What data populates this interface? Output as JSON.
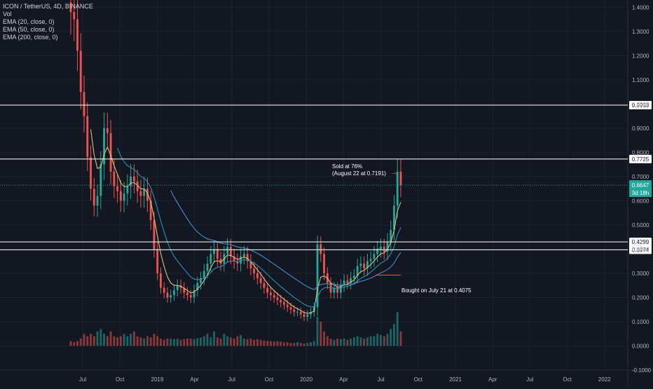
{
  "header": {
    "symbol_line": "ICON / TetherUS, 4D, BINANCE",
    "indicators": [
      "Vol",
      "EMA (20, close, 0)",
      "EMA (50, close, 0)",
      "EMA (200, close, 0)"
    ]
  },
  "colors": {
    "background": "#131722",
    "grid": "#1e222d",
    "axis_text": "#b2b5be",
    "up": "#26a69a",
    "down": "#ef5350",
    "ema20": "#d9c27a",
    "ema50": "#2196b3",
    "ema200": "#3e8fcf",
    "hlines": "#ffffff",
    "current_price_line": "#26a69a",
    "arrow_sold": "#ef5350",
    "arrow_bought": "#26a69a"
  },
  "chart_data": {
    "type": "candlestick",
    "x_ticks": [
      "Jul",
      "Oct",
      "2019",
      "Apr",
      "Jul",
      "Oct",
      "2020",
      "Apr",
      "Jul",
      "Oct",
      "2021",
      "Apr",
      "Jul",
      "Oct",
      "2022"
    ],
    "y_ticks": [
      "1.4000",
      "1.3000",
      "1.2000",
      "1.1000",
      "1.0000",
      "0.9000",
      "0.8000",
      "0.7000",
      "0.6000",
      "0.5000",
      "0.4000",
      "0.3000",
      "0.2000",
      "0.1000",
      "0.0000",
      "-0.1000"
    ],
    "ylim": [
      -0.1,
      1.43
    ],
    "horizontal_levels": [
      0.9953,
      0.7725,
      0.4299,
      0.3974
    ],
    "level_labels": [
      "0.9953",
      "0.7725",
      "0.4299",
      "0.3974"
    ],
    "current_price": 0.6647,
    "current_price_label": "0.6647",
    "countdown_label": "3d 18h",
    "annotations": {
      "sold_line1": "Sold at 76%",
      "sold_line2": "(August 22 at 0.7191)",
      "bought": "Bought on July 21 at 0.4075"
    },
    "series": {
      "close": [
        1.38,
        1.35,
        1.22,
        1.05,
        0.95,
        0.78,
        0.65,
        0.58,
        0.62,
        0.75,
        0.9,
        0.88,
        0.72,
        0.66,
        0.64,
        0.6,
        0.63,
        0.66,
        0.7,
        0.68,
        0.64,
        0.62,
        0.65,
        0.6,
        0.52,
        0.4,
        0.3,
        0.24,
        0.22,
        0.2,
        0.21,
        0.23,
        0.25,
        0.24,
        0.22,
        0.21,
        0.2,
        0.23,
        0.26,
        0.28,
        0.31,
        0.34,
        0.38,
        0.4,
        0.36,
        0.34,
        0.38,
        0.41,
        0.37,
        0.35,
        0.34,
        0.37,
        0.38,
        0.35,
        0.32,
        0.3,
        0.28,
        0.26,
        0.24,
        0.22,
        0.21,
        0.2,
        0.19,
        0.18,
        0.17,
        0.16,
        0.15,
        0.14,
        0.14,
        0.13,
        0.12,
        0.13,
        0.14,
        0.16,
        0.42,
        0.38,
        0.3,
        0.26,
        0.22,
        0.24,
        0.22,
        0.25,
        0.27,
        0.26,
        0.28,
        0.29,
        0.33,
        0.34,
        0.32,
        0.35,
        0.36,
        0.38,
        0.4,
        0.41,
        0.39,
        0.43,
        0.48,
        0.58,
        0.72,
        0.6647
      ],
      "volume": [
        0.02,
        0.015,
        0.02,
        0.03,
        0.05,
        0.04,
        0.05,
        0.04,
        0.06,
        0.07,
        0.05,
        0.04,
        0.06,
        0.04,
        0.035,
        0.04,
        0.05,
        0.04,
        0.05,
        0.06,
        0.04,
        0.035,
        0.03,
        0.04,
        0.035,
        0.05,
        0.04,
        0.03,
        0.025,
        0.03,
        0.03,
        0.028,
        0.03,
        0.025,
        0.028,
        0.03,
        0.03,
        0.028,
        0.032,
        0.035,
        0.04,
        0.05,
        0.035,
        0.06,
        0.035,
        0.03,
        0.05,
        0.04,
        0.035,
        0.03,
        0.04,
        0.045,
        0.03,
        0.028,
        0.03,
        0.025,
        0.028,
        0.025,
        0.022,
        0.02,
        0.02,
        0.018,
        0.02,
        0.018,
        0.015,
        0.015,
        0.012,
        0.012,
        0.015,
        0.012,
        0.01,
        0.012,
        0.015,
        0.02,
        0.12,
        0.1,
        0.06,
        0.04,
        0.03,
        0.025,
        0.03,
        0.028,
        0.03,
        0.025,
        0.03,
        0.035,
        0.04,
        0.035,
        0.03,
        0.035,
        0.04,
        0.04,
        0.05,
        0.045,
        0.04,
        0.05,
        0.07,
        0.09,
        0.14,
        0.06
      ]
    }
  }
}
